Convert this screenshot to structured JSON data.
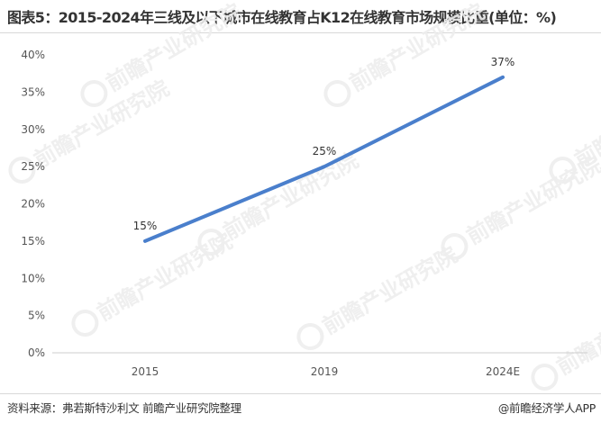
{
  "header": {
    "title": "图表5：2015-2024年三线及以下城市在线教育占K12在线教育市场规模比重(单位：%)"
  },
  "footer": {
    "source": "资料来源：弗若斯特沙利文 前瞻产业研究院整理",
    "credit": "@前瞻经济学人APP"
  },
  "watermark": {
    "brand": "前瞻产业研究院"
  },
  "colors": {
    "line": "#4a7fcc",
    "axis": "#cccccc",
    "tick_text": "#555555",
    "label_text": "#333333",
    "watermark": "#eeeeee"
  },
  "chart_data": {
    "type": "line",
    "title": "",
    "xlabel": "",
    "ylabel": "",
    "categories": [
      "2015",
      "2019",
      "2024E"
    ],
    "series": [
      {
        "values": [
          15,
          25,
          37
        ],
        "labels": [
          "15%",
          "25%",
          "37%"
        ]
      }
    ],
    "y_ticks": [
      0,
      5,
      10,
      15,
      20,
      25,
      30,
      35,
      40
    ],
    "y_tick_labels": [
      "0%",
      "5%",
      "10%",
      "15%",
      "20%",
      "25%",
      "30%",
      "35%",
      "40%"
    ],
    "ylim": [
      0,
      40
    ],
    "grid": false,
    "legend": "none"
  }
}
